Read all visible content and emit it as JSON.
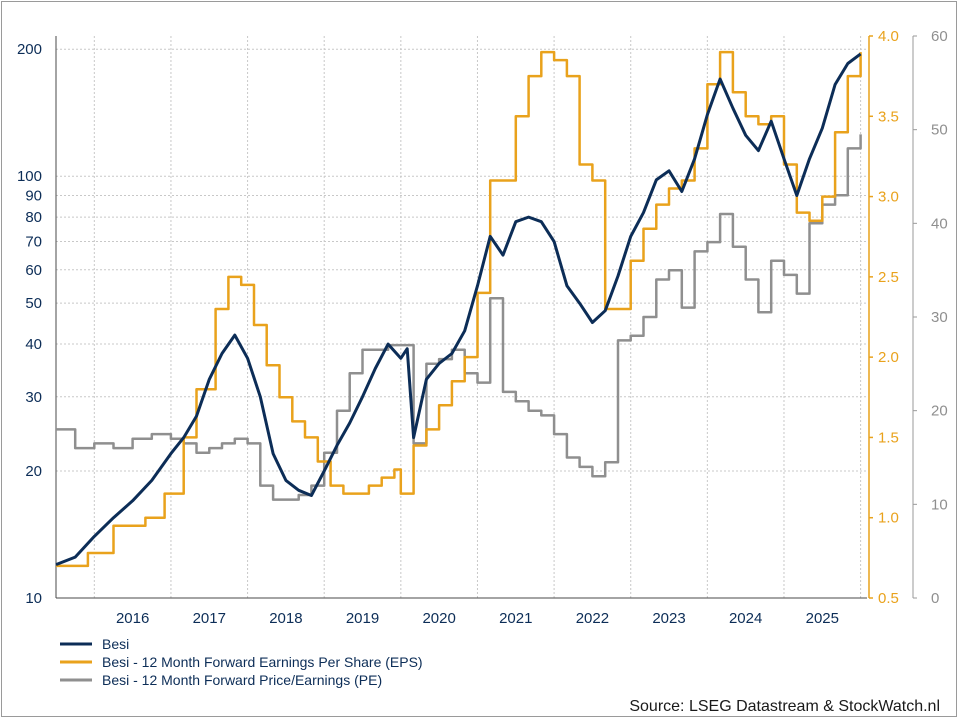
{
  "chart_data": {
    "type": "line",
    "title": "",
    "source": "Source: LSEG Datastream & StockWatch.nl",
    "x_axis": {
      "labels": [
        "2016",
        "2017",
        "2018",
        "2019",
        "2020",
        "2021",
        "2022",
        "2023",
        "2024",
        "2025"
      ],
      "range": [
        "2015-07",
        "2026-02"
      ]
    },
    "y_axis_left": {
      "scale": "log",
      "range": [
        10,
        215
      ],
      "ticks": [
        10,
        20,
        30,
        40,
        50,
        60,
        70,
        80,
        90,
        100,
        200
      ],
      "tick_labels": [
        "10",
        "20",
        "30",
        "40",
        "50",
        "60",
        "70",
        "80",
        "90",
        "100",
        "200"
      ],
      "color": "#0c2d57"
    },
    "y_axis_right_eps": {
      "scale": "linear",
      "range": [
        0.5,
        4.0
      ],
      "ticks": [
        0.5,
        1.0,
        1.5,
        2.0,
        2.5,
        3.0,
        3.5,
        4.0
      ],
      "tick_labels": [
        "0.5",
        "1.0",
        "1.5",
        "2.0",
        "2.5",
        "3.0",
        "3.5",
        "4.0"
      ],
      "color": "#e9a21c"
    },
    "y_axis_right_pe": {
      "scale": "linear",
      "range": [
        0,
        60
      ],
      "ticks": [
        0,
        10,
        20,
        30,
        40,
        50,
        60
      ],
      "tick_labels": [
        "0",
        "10",
        "20",
        "30",
        "40",
        "50",
        "60"
      ],
      "color": "#8f8f8f"
    },
    "grid": true,
    "legend_position": "bottom-left",
    "series": [
      {
        "name": "Besi",
        "axis": "left",
        "color": "#0c2d57",
        "points": [
          [
            "2015-07",
            12.0
          ],
          [
            "2015-10",
            12.5
          ],
          [
            "2016-01",
            14.0
          ],
          [
            "2016-04",
            15.5
          ],
          [
            "2016-07",
            17.0
          ],
          [
            "2016-10",
            19.0
          ],
          [
            "2017-01",
            22.0
          ],
          [
            "2017-03",
            24.0
          ],
          [
            "2017-05",
            27.0
          ],
          [
            "2017-07",
            33.0
          ],
          [
            "2017-09",
            38.0
          ],
          [
            "2017-11",
            42.0
          ],
          [
            "2018-01",
            37.0
          ],
          [
            "2018-03",
            30.0
          ],
          [
            "2018-05",
            22.0
          ],
          [
            "2018-07",
            19.0
          ],
          [
            "2018-09",
            18.0
          ],
          [
            "2018-11",
            17.5
          ],
          [
            "2019-01",
            20.0
          ],
          [
            "2019-03",
            23.0
          ],
          [
            "2019-05",
            26.0
          ],
          [
            "2019-07",
            30.0
          ],
          [
            "2019-09",
            35.0
          ],
          [
            "2019-11",
            40.0
          ],
          [
            "2020-01",
            37.0
          ],
          [
            "2020-02",
            39.0
          ],
          [
            "2020-03",
            24.0
          ],
          [
            "2020-05",
            33.0
          ],
          [
            "2020-07",
            36.0
          ],
          [
            "2020-09",
            38.0
          ],
          [
            "2020-11",
            43.0
          ],
          [
            "2021-01",
            55.0
          ],
          [
            "2021-03",
            72.0
          ],
          [
            "2021-05",
            65.0
          ],
          [
            "2021-07",
            78.0
          ],
          [
            "2021-09",
            80.0
          ],
          [
            "2021-11",
            78.0
          ],
          [
            "2022-01",
            70.0
          ],
          [
            "2022-03",
            55.0
          ],
          [
            "2022-05",
            50.0
          ],
          [
            "2022-07",
            45.0
          ],
          [
            "2022-09",
            48.0
          ],
          [
            "2022-11",
            58.0
          ],
          [
            "2023-01",
            72.0
          ],
          [
            "2023-03",
            82.0
          ],
          [
            "2023-05",
            98.0
          ],
          [
            "2023-07",
            103.0
          ],
          [
            "2023-09",
            92.0
          ],
          [
            "2023-11",
            110.0
          ],
          [
            "2024-01",
            140.0
          ],
          [
            "2024-03",
            170.0
          ],
          [
            "2024-05",
            145.0
          ],
          [
            "2024-07",
            125.0
          ],
          [
            "2024-09",
            115.0
          ],
          [
            "2024-11",
            135.0
          ],
          [
            "2025-01",
            110.0
          ],
          [
            "2025-03",
            90.0
          ],
          [
            "2025-05",
            110.0
          ],
          [
            "2025-07",
            130.0
          ],
          [
            "2025-09",
            165.0
          ],
          [
            "2025-11",
            185.0
          ],
          [
            "2026-01",
            195.0
          ]
        ]
      },
      {
        "name": "Besi - 12 Month Forward Earnings Per Share (EPS)",
        "axis": "right_eps",
        "color": "#e9a21c",
        "points": [
          [
            "2015-07",
            0.7
          ],
          [
            "2015-12",
            0.78
          ],
          [
            "2016-04",
            0.95
          ],
          [
            "2016-09",
            1.0
          ],
          [
            "2016-12",
            1.15
          ],
          [
            "2017-03",
            1.5
          ],
          [
            "2017-05",
            1.8
          ],
          [
            "2017-08",
            2.3
          ],
          [
            "2017-10",
            2.5
          ],
          [
            "2017-12",
            2.45
          ],
          [
            "2018-02",
            2.2
          ],
          [
            "2018-04",
            1.95
          ],
          [
            "2018-06",
            1.75
          ],
          [
            "2018-08",
            1.6
          ],
          [
            "2018-10",
            1.5
          ],
          [
            "2018-12",
            1.35
          ],
          [
            "2019-02",
            1.2
          ],
          [
            "2019-04",
            1.15
          ],
          [
            "2019-06",
            1.15
          ],
          [
            "2019-08",
            1.2
          ],
          [
            "2019-10",
            1.25
          ],
          [
            "2019-12",
            1.3
          ],
          [
            "2020-01",
            1.15
          ],
          [
            "2020-03",
            1.45
          ],
          [
            "2020-05",
            1.55
          ],
          [
            "2020-07",
            1.7
          ],
          [
            "2020-09",
            1.85
          ],
          [
            "2020-11",
            2.0
          ],
          [
            "2021-01",
            2.4
          ],
          [
            "2021-03",
            3.1
          ],
          [
            "2021-05",
            3.1
          ],
          [
            "2021-07",
            3.5
          ],
          [
            "2021-09",
            3.75
          ],
          [
            "2021-11",
            3.9
          ],
          [
            "2022-01",
            3.85
          ],
          [
            "2022-03",
            3.75
          ],
          [
            "2022-05",
            3.2
          ],
          [
            "2022-07",
            3.1
          ],
          [
            "2022-09",
            2.3
          ],
          [
            "2022-11",
            2.3
          ],
          [
            "2023-01",
            2.6
          ],
          [
            "2023-03",
            2.8
          ],
          [
            "2023-05",
            2.95
          ],
          [
            "2023-07",
            3.05
          ],
          [
            "2023-09",
            3.1
          ],
          [
            "2023-11",
            3.3
          ],
          [
            "2024-01",
            3.7
          ],
          [
            "2024-03",
            3.9
          ],
          [
            "2024-05",
            3.65
          ],
          [
            "2024-07",
            3.5
          ],
          [
            "2024-09",
            3.45
          ],
          [
            "2024-11",
            3.5
          ],
          [
            "2025-01",
            3.2
          ],
          [
            "2025-03",
            2.9
          ],
          [
            "2025-05",
            2.85
          ],
          [
            "2025-07",
            3.0
          ],
          [
            "2025-09",
            3.4
          ],
          [
            "2025-11",
            3.75
          ],
          [
            "2026-01",
            3.9
          ]
        ]
      },
      {
        "name": "Besi - 12 Month Forward Price/Earnings (PE)",
        "axis": "right_pe",
        "color": "#8f8f8f",
        "points": [
          [
            "2015-07",
            18.0
          ],
          [
            "2015-10",
            16.0
          ],
          [
            "2016-01",
            16.5
          ],
          [
            "2016-04",
            16.0
          ],
          [
            "2016-07",
            17.0
          ],
          [
            "2016-10",
            17.5
          ],
          [
            "2017-01",
            17.0
          ],
          [
            "2017-03",
            16.5
          ],
          [
            "2017-05",
            15.5
          ],
          [
            "2017-07",
            16.0
          ],
          [
            "2017-09",
            16.5
          ],
          [
            "2017-11",
            17.0
          ],
          [
            "2018-01",
            16.5
          ],
          [
            "2018-03",
            12.0
          ],
          [
            "2018-05",
            10.5
          ],
          [
            "2018-07",
            10.5
          ],
          [
            "2018-09",
            11.0
          ],
          [
            "2018-11",
            12.0
          ],
          [
            "2019-01",
            15.5
          ],
          [
            "2019-03",
            20.0
          ],
          [
            "2019-05",
            24.0
          ],
          [
            "2019-07",
            26.5
          ],
          [
            "2019-09",
            26.5
          ],
          [
            "2019-11",
            27.0
          ],
          [
            "2020-01",
            27.0
          ],
          [
            "2020-03",
            16.5
          ],
          [
            "2020-05",
            25.0
          ],
          [
            "2020-07",
            25.5
          ],
          [
            "2020-09",
            26.5
          ],
          [
            "2020-11",
            24.0
          ],
          [
            "2021-01",
            23.0
          ],
          [
            "2021-03",
            32.0
          ],
          [
            "2021-05",
            22.0
          ],
          [
            "2021-07",
            21.0
          ],
          [
            "2021-09",
            20.0
          ],
          [
            "2021-11",
            19.5
          ],
          [
            "2022-01",
            17.5
          ],
          [
            "2022-03",
            15.0
          ],
          [
            "2022-05",
            14.0
          ],
          [
            "2022-07",
            13.0
          ],
          [
            "2022-09",
            14.5
          ],
          [
            "2022-11",
            27.5
          ],
          [
            "2023-01",
            28.0
          ],
          [
            "2023-03",
            30.0
          ],
          [
            "2023-05",
            34.0
          ],
          [
            "2023-07",
            35.0
          ],
          [
            "2023-09",
            31.0
          ],
          [
            "2023-11",
            37.0
          ],
          [
            "2024-01",
            38.0
          ],
          [
            "2024-03",
            41.0
          ],
          [
            "2024-05",
            37.5
          ],
          [
            "2024-07",
            34.0
          ],
          [
            "2024-09",
            30.5
          ],
          [
            "2024-11",
            36.0
          ],
          [
            "2025-01",
            34.5
          ],
          [
            "2025-03",
            32.5
          ],
          [
            "2025-05",
            40.0
          ],
          [
            "2025-07",
            42.0
          ],
          [
            "2025-09",
            43.0
          ],
          [
            "2025-11",
            48.0
          ],
          [
            "2026-01",
            49.5
          ]
        ]
      }
    ]
  }
}
